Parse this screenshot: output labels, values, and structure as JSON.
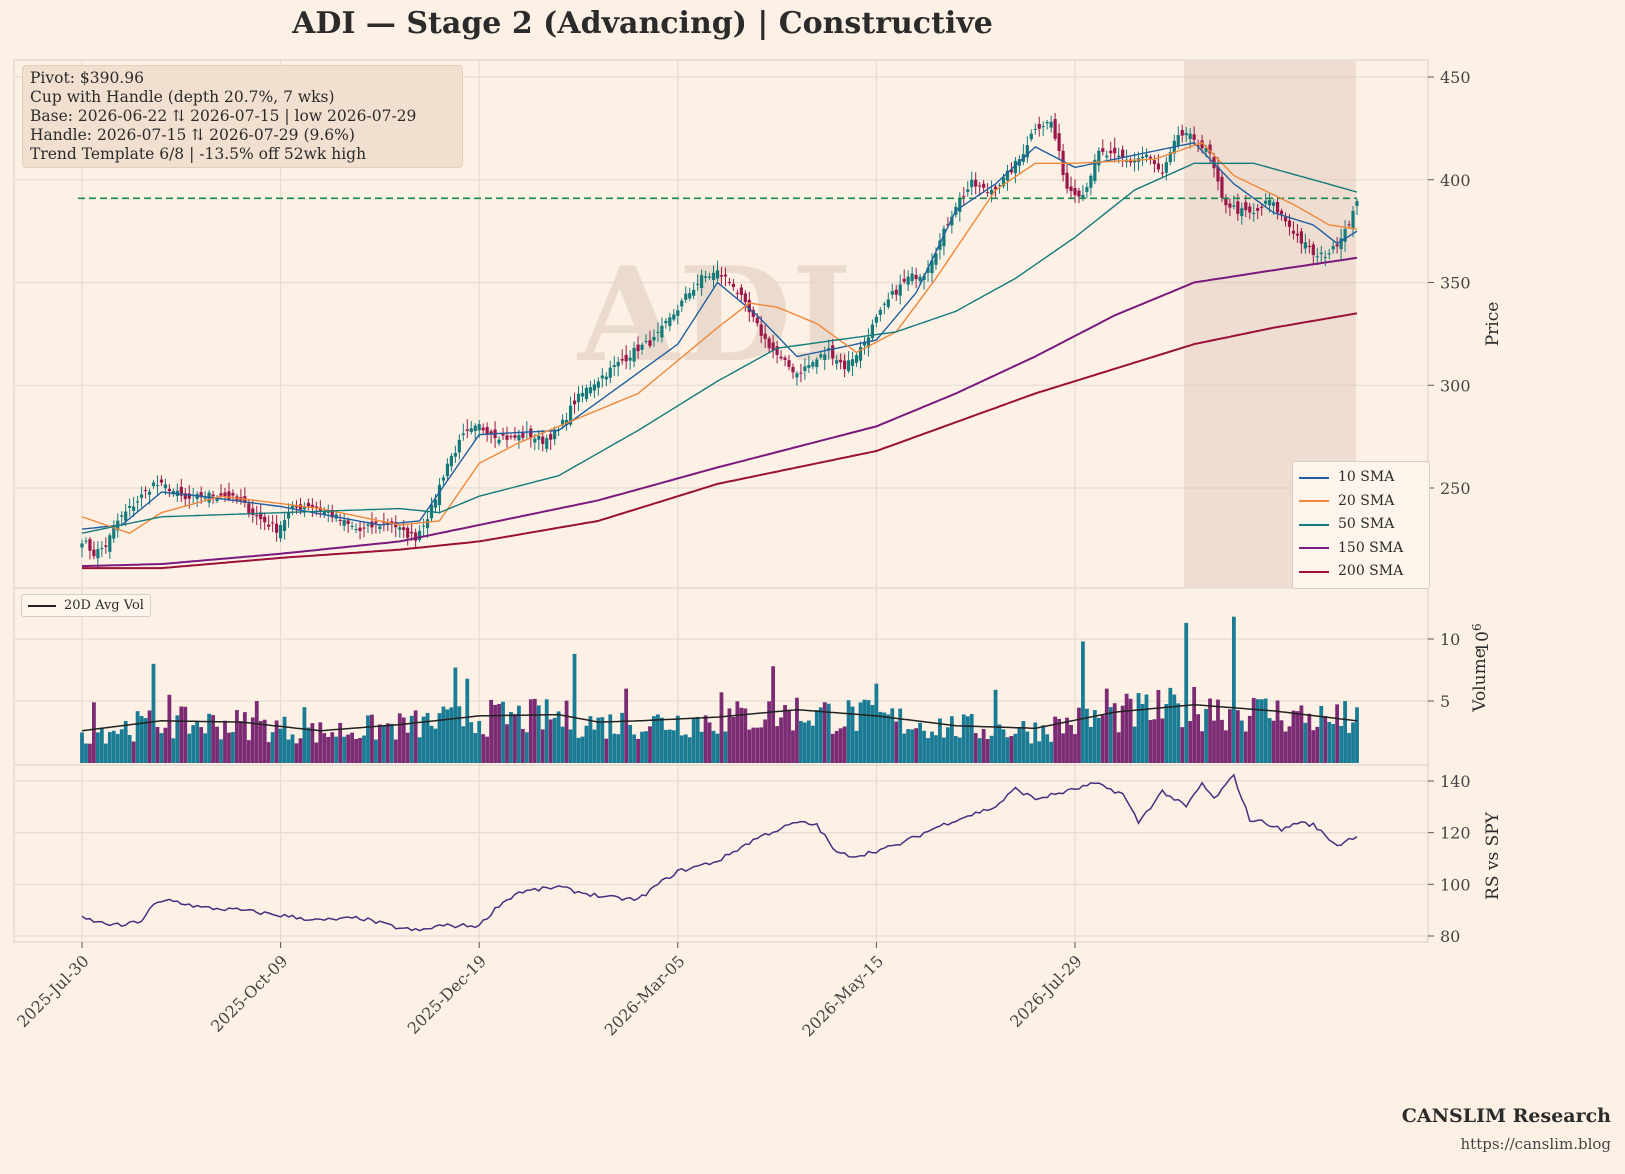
{
  "chart_title": "ADI  —  Stage 2 (Advancing)  |  Constructive",
  "info_box": {
    "pivot": "Pivot: $390.96",
    "pattern": "Cup with Handle  (depth 20.7%, 7 wks)",
    "base": "Base: 2026-06-22 ⇅ 2026-07-15  |  low 2026-07-29",
    "handle": "Handle: 2026-07-15 ⇅ 2026-07-29 (9.6%)",
    "trend": "Trend Template 6/8  |  -13.5% off 52wk high"
  },
  "watermark": "ADI",
  "legend": [
    {
      "label": "10 SMA",
      "color": "#1f5f9e"
    },
    {
      "label": "20 SMA",
      "color": "#f0883a"
    },
    {
      "label": "50 SMA",
      "color": "#137a7a"
    },
    {
      "label": "150 SMA",
      "color": "#7b1a7e"
    },
    {
      "label": "200 SMA",
      "color": "#9b1037"
    }
  ],
  "volume_legend": "20D Avg Vol",
  "branding": {
    "name": "CANSLIM Research",
    "url": "https://canslim.blog"
  },
  "colors": {
    "up": "#137a7a",
    "down": "#9b1749",
    "vol_up": "#1a7b94",
    "vol_down": "#7a2b73",
    "pivot": "#1a8a4a",
    "rs": "#4a2d7e",
    "avg_vol": "#222222"
  },
  "chart_data": [
    {
      "type": "candlestick",
      "ylabel": "Price",
      "ylim": [
        205,
        455
      ],
      "yticks": [
        250,
        300,
        350,
        400,
        450
      ],
      "x_tick_labels": [
        "2025-Jul-30",
        "2025-Oct-09",
        "2025-Dec-19",
        "2026-Mar-05",
        "2026-May-15",
        "2026-Jul-29"
      ],
      "pivot": 390.96,
      "shaded_base": [
        "2026-06-22",
        "2026-08-10"
      ],
      "price_anchors": [
        [
          0,
          225
        ],
        [
          3,
          218
        ],
        [
          6,
          222
        ],
        [
          9,
          234
        ],
        [
          14,
          244
        ],
        [
          18,
          252
        ],
        [
          22,
          250
        ],
        [
          26,
          244
        ],
        [
          30,
          246
        ],
        [
          35,
          247
        ],
        [
          40,
          243
        ],
        [
          44,
          236
        ],
        [
          49,
          230
        ],
        [
          53,
          240
        ],
        [
          57,
          242
        ],
        [
          62,
          238
        ],
        [
          66,
          233
        ],
        [
          70,
          229
        ],
        [
          74,
          232
        ],
        [
          78,
          233
        ],
        [
          81,
          228
        ],
        [
          84,
          226
        ],
        [
          88,
          240
        ],
        [
          92,
          262
        ],
        [
          96,
          275
        ],
        [
          100,
          280
        ],
        [
          104,
          276
        ],
        [
          108,
          274
        ],
        [
          112,
          276
        ],
        [
          116,
          273
        ],
        [
          120,
          278
        ],
        [
          124,
          292
        ],
        [
          128,
          300
        ],
        [
          132,
          306
        ],
        [
          136,
          312
        ],
        [
          140,
          318
        ],
        [
          144,
          322
        ],
        [
          148,
          332
        ],
        [
          152,
          343
        ],
        [
          156,
          352
        ],
        [
          160,
          355
        ],
        [
          164,
          349
        ],
        [
          168,
          335
        ],
        [
          172,
          322
        ],
        [
          176,
          312
        ],
        [
          180,
          306
        ],
        [
          184,
          311
        ],
        [
          188,
          317
        ],
        [
          192,
          309
        ],
        [
          196,
          318
        ],
        [
          200,
          332
        ],
        [
          204,
          344
        ],
        [
          208,
          352
        ],
        [
          212,
          355
        ],
        [
          216,
          370
        ],
        [
          220,
          388
        ],
        [
          224,
          398
        ],
        [
          228,
          394
        ],
        [
          232,
          400
        ],
        [
          236,
          410
        ],
        [
          240,
          426
        ],
        [
          244,
          428
        ],
        [
          248,
          396
        ],
        [
          252,
          393
        ],
        [
          256,
          413
        ],
        [
          260,
          411
        ],
        [
          264,
          409
        ],
        [
          268,
          412
        ],
        [
          272,
          402
        ],
        [
          276,
          422
        ],
        [
          280,
          420
        ],
        [
          284,
          412
        ],
        [
          287,
          390
        ],
        [
          291,
          385
        ],
        [
          295,
          383
        ],
        [
          299,
          390
        ],
        [
          303,
          380
        ],
        [
          307,
          370
        ],
        [
          311,
          362
        ],
        [
          315,
          366
        ],
        [
          319,
          380
        ],
        [
          321,
          388
        ]
      ],
      "sma_anchors": {
        "10": [
          [
            0,
            230
          ],
          [
            10,
            232
          ],
          [
            20,
            248
          ],
          [
            30,
            246
          ],
          [
            50,
            241
          ],
          [
            75,
            232
          ],
          [
            85,
            234
          ],
          [
            100,
            276
          ],
          [
            120,
            278
          ],
          [
            140,
            306
          ],
          [
            150,
            320
          ],
          [
            160,
            350
          ],
          [
            170,
            334
          ],
          [
            180,
            314
          ],
          [
            190,
            318
          ],
          [
            200,
            322
          ],
          [
            210,
            345
          ],
          [
            220,
            385
          ],
          [
            230,
            398
          ],
          [
            240,
            416
          ],
          [
            250,
            406
          ],
          [
            260,
            410
          ],
          [
            270,
            414
          ],
          [
            280,
            418
          ],
          [
            290,
            398
          ],
          [
            300,
            384
          ],
          [
            310,
            378
          ],
          [
            316,
            369
          ],
          [
            321,
            375
          ]
        ],
        "20": [
          [
            0,
            236
          ],
          [
            12,
            228
          ],
          [
            20,
            238
          ],
          [
            35,
            246
          ],
          [
            60,
            240
          ],
          [
            80,
            232
          ],
          [
            90,
            234
          ],
          [
            100,
            262
          ],
          [
            110,
            272
          ],
          [
            120,
            280
          ],
          [
            140,
            296
          ],
          [
            160,
            328
          ],
          [
            168,
            340
          ],
          [
            175,
            338
          ],
          [
            185,
            330
          ],
          [
            195,
            316
          ],
          [
            205,
            326
          ],
          [
            215,
            352
          ],
          [
            230,
            395
          ],
          [
            240,
            408
          ],
          [
            250,
            408
          ],
          [
            270,
            410
          ],
          [
            282,
            418
          ],
          [
            290,
            402
          ],
          [
            305,
            388
          ],
          [
            314,
            378
          ],
          [
            321,
            376
          ]
        ],
        "50": [
          [
            0,
            228
          ],
          [
            20,
            236
          ],
          [
            50,
            238
          ],
          [
            80,
            240
          ],
          [
            90,
            238
          ],
          [
            100,
            246
          ],
          [
            120,
            256
          ],
          [
            140,
            278
          ],
          [
            160,
            302
          ],
          [
            175,
            318
          ],
          [
            190,
            322
          ],
          [
            205,
            326
          ],
          [
            220,
            336
          ],
          [
            235,
            352
          ],
          [
            250,
            372
          ],
          [
            265,
            395
          ],
          [
            280,
            408
          ],
          [
            295,
            408
          ],
          [
            310,
            400
          ],
          [
            321,
            394
          ]
        ],
        "150": [
          [
            0,
            212
          ],
          [
            20,
            213
          ],
          [
            50,
            218
          ],
          [
            80,
            224
          ],
          [
            100,
            232
          ],
          [
            130,
            244
          ],
          [
            160,
            260
          ],
          [
            180,
            270
          ],
          [
            200,
            280
          ],
          [
            220,
            296
          ],
          [
            240,
            314
          ],
          [
            260,
            334
          ],
          [
            280,
            350
          ],
          [
            300,
            356
          ],
          [
            321,
            362
          ]
        ],
        "200": [
          [
            0,
            211
          ],
          [
            20,
            211
          ],
          [
            50,
            216
          ],
          [
            80,
            220
          ],
          [
            100,
            224
          ],
          [
            130,
            234
          ],
          [
            160,
            252
          ],
          [
            180,
            260
          ],
          [
            200,
            268
          ],
          [
            220,
            282
          ],
          [
            240,
            296
          ],
          [
            260,
            308
          ],
          [
            280,
            320
          ],
          [
            300,
            328
          ],
          [
            321,
            335
          ]
        ]
      },
      "bars": 322
    },
    {
      "type": "bar",
      "ylabel": "Volume",
      "scale_label": "10^6",
      "ylim": [
        0,
        12
      ],
      "yticks": [
        5,
        10
      ],
      "avg_vol_anchors": [
        [
          0,
          2.6
        ],
        [
          20,
          3.4
        ],
        [
          40,
          3.3
        ],
        [
          60,
          2.6
        ],
        [
          80,
          3.1
        ],
        [
          100,
          3.8
        ],
        [
          120,
          3.9
        ],
        [
          130,
          3.3
        ],
        [
          140,
          3.4
        ],
        [
          160,
          3.7
        ],
        [
          180,
          4.3
        ],
        [
          200,
          3.8
        ],
        [
          220,
          3.0
        ],
        [
          240,
          2.8
        ],
        [
          260,
          4.1
        ],
        [
          280,
          4.7
        ],
        [
          300,
          4.2
        ],
        [
          321,
          3.4
        ]
      ],
      "spikes": [
        [
          3,
          4.9
        ],
        [
          18,
          8.0
        ],
        [
          22,
          5.5
        ],
        [
          44,
          5.0
        ],
        [
          56,
          4.5
        ],
        [
          94,
          7.7
        ],
        [
          97,
          6.8
        ],
        [
          124,
          8.8
        ],
        [
          137,
          6.0
        ],
        [
          161,
          5.7
        ],
        [
          174,
          7.8
        ],
        [
          200,
          6.4
        ],
        [
          230,
          5.9
        ],
        [
          252,
          9.8
        ],
        [
          258,
          6.0
        ],
        [
          278,
          11.3
        ],
        [
          284,
          5.2
        ],
        [
          290,
          11.8
        ],
        [
          298,
          5.2
        ],
        [
          318,
          5.0
        ]
      ]
    },
    {
      "type": "line",
      "ylabel": "RS vs SPY",
      "ylim": [
        78,
        142
      ],
      "yticks": [
        80,
        100,
        120,
        140
      ],
      "rs_anchors": [
        [
          0,
          87
        ],
        [
          5,
          85
        ],
        [
          10,
          84
        ],
        [
          15,
          86
        ],
        [
          18,
          92
        ],
        [
          22,
          94
        ],
        [
          30,
          91
        ],
        [
          40,
          90
        ],
        [
          50,
          88
        ],
        [
          60,
          86
        ],
        [
          70,
          87
        ],
        [
          80,
          83
        ],
        [
          85,
          82
        ],
        [
          90,
          84
        ],
        [
          100,
          84
        ],
        [
          105,
          92
        ],
        [
          110,
          97
        ],
        [
          120,
          99
        ],
        [
          125,
          97
        ],
        [
          132,
          95
        ],
        [
          140,
          94
        ],
        [
          145,
          100
        ],
        [
          150,
          105
        ],
        [
          160,
          109
        ],
        [
          170,
          118
        ],
        [
          180,
          124
        ],
        [
          185,
          123
        ],
        [
          190,
          112
        ],
        [
          195,
          111
        ],
        [
          200,
          113
        ],
        [
          205,
          115
        ],
        [
          215,
          122
        ],
        [
          220,
          125
        ],
        [
          230,
          130
        ],
        [
          235,
          137
        ],
        [
          240,
          133
        ],
        [
          248,
          136
        ],
        [
          255,
          139
        ],
        [
          262,
          135
        ],
        [
          266,
          124
        ],
        [
          272,
          136
        ],
        [
          278,
          130
        ],
        [
          282,
          139
        ],
        [
          285,
          133
        ],
        [
          290,
          142
        ],
        [
          294,
          125
        ],
        [
          298,
          124
        ],
        [
          302,
          121
        ],
        [
          306,
          124
        ],
        [
          310,
          123
        ],
        [
          316,
          115
        ],
        [
          321,
          119
        ]
      ]
    }
  ]
}
